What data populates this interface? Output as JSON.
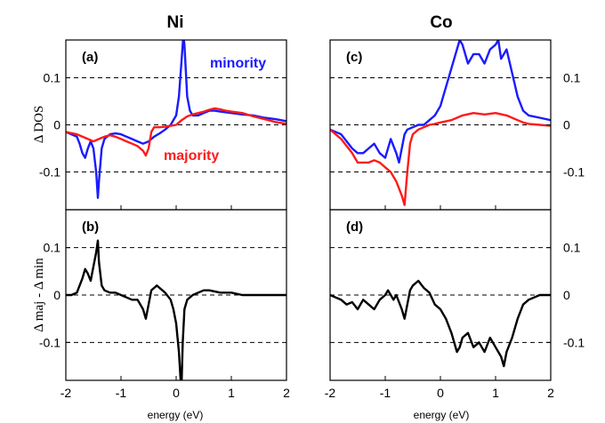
{
  "colors": {
    "minority": "#1a1aff",
    "majority": "#ff1a1a",
    "difference": "#000000"
  },
  "columns": {
    "left_title": "Ni",
    "right_title": "Co"
  },
  "ylabels": {
    "top": "Δ DOS",
    "bottom": "Δ maj - Δ min"
  },
  "xlabel": "energy (eV)",
  "xticks": [
    "-2",
    "-1",
    "0",
    "1",
    "2"
  ],
  "yticks": [
    "-0.1",
    "0",
    "0.1"
  ],
  "series_labels": {
    "minority": "minority",
    "majority": "majority"
  },
  "panel_labels": {
    "a": "(a)",
    "b": "(b)",
    "c": "(c)",
    "d": "(d)"
  },
  "chart_data": [
    {
      "panel": "(a)",
      "material": "Ni",
      "type": "line",
      "xlim": [
        -2,
        2
      ],
      "ylim": [
        -0.18,
        0.18
      ],
      "grid": "dashed lines at -0.1, 0, 0.1",
      "series": [
        {
          "name": "minority",
          "x": [
            -2,
            -1.9,
            -1.8,
            -1.75,
            -1.7,
            -1.65,
            -1.6,
            -1.55,
            -1.5,
            -1.45,
            -1.42,
            -1.4,
            -1.35,
            -1.3,
            -1.2,
            -1.1,
            -1.0,
            -0.9,
            -0.8,
            -0.7,
            -0.6,
            -0.5,
            -0.4,
            -0.3,
            -0.2,
            -0.1,
            0,
            0.05,
            0.1,
            0.13,
            0.15,
            0.2,
            0.25,
            0.3,
            0.4,
            0.5,
            0.6,
            0.7,
            0.8,
            1.0,
            1.2,
            1.4,
            1.6,
            1.8,
            2.0
          ],
          "y": [
            -0.015,
            -0.02,
            -0.025,
            -0.04,
            -0.06,
            -0.07,
            -0.05,
            -0.035,
            -0.05,
            -0.1,
            -0.155,
            -0.12,
            -0.05,
            -0.03,
            -0.02,
            -0.018,
            -0.02,
            -0.025,
            -0.03,
            -0.035,
            -0.04,
            -0.035,
            -0.025,
            -0.018,
            -0.01,
            0.0,
            0.02,
            0.06,
            0.14,
            0.19,
            0.17,
            0.06,
            0.03,
            0.02,
            0.02,
            0.025,
            0.03,
            0.03,
            0.028,
            0.025,
            0.022,
            0.02,
            0.015,
            0.012,
            0.008
          ]
        },
        {
          "name": "majority",
          "x": [
            -2,
            -1.8,
            -1.6,
            -1.5,
            -1.4,
            -1.3,
            -1.2,
            -1.1,
            -1.0,
            -0.9,
            -0.8,
            -0.7,
            -0.6,
            -0.55,
            -0.5,
            -0.45,
            -0.4,
            -0.3,
            -0.2,
            -0.1,
            0,
            0.1,
            0.2,
            0.3,
            0.4,
            0.5,
            0.6,
            0.7,
            0.8,
            0.9,
            1.0,
            1.2,
            1.4,
            1.6,
            1.8,
            2.0
          ],
          "y": [
            -0.015,
            -0.02,
            -0.03,
            -0.035,
            -0.03,
            -0.025,
            -0.022,
            -0.025,
            -0.03,
            -0.035,
            -0.04,
            -0.045,
            -0.055,
            -0.065,
            -0.05,
            -0.015,
            -0.005,
            -0.005,
            -0.004,
            -0.002,
            0.0,
            0.01,
            0.018,
            0.022,
            0.025,
            0.028,
            0.032,
            0.035,
            0.033,
            0.03,
            0.028,
            0.025,
            0.018,
            0.012,
            0.006,
            0.002
          ]
        }
      ]
    },
    {
      "panel": "(b)",
      "material": "Ni",
      "type": "line",
      "xlim": [
        -2,
        2
      ],
      "ylim": [
        -0.18,
        0.18
      ],
      "series": [
        {
          "name": "",
          "x": [
            -2,
            -1.9,
            -1.8,
            -1.75,
            -1.7,
            -1.65,
            -1.6,
            -1.55,
            -1.5,
            -1.45,
            -1.42,
            -1.4,
            -1.35,
            -1.3,
            -1.2,
            -1.1,
            -1.0,
            -0.9,
            -0.8,
            -0.7,
            -0.6,
            -0.55,
            -0.5,
            -0.45,
            -0.4,
            -0.35,
            -0.3,
            -0.2,
            -0.1,
            -0.05,
            0,
            0.05,
            0.08,
            0.1,
            0.12,
            0.15,
            0.2,
            0.3,
            0.4,
            0.5,
            0.6,
            0.8,
            1.0,
            1.2,
            1.4,
            1.6,
            1.8,
            2.0
          ],
          "y": [
            0.0,
            0.0,
            0.005,
            0.02,
            0.035,
            0.055,
            0.045,
            0.03,
            0.06,
            0.09,
            0.115,
            0.07,
            0.02,
            0.01,
            0.005,
            0.005,
            0.0,
            -0.005,
            -0.01,
            -0.01,
            -0.03,
            -0.05,
            -0.02,
            0.01,
            0.015,
            0.02,
            0.015,
            0.005,
            -0.01,
            -0.03,
            -0.06,
            -0.12,
            -0.18,
            -0.18,
            -0.1,
            -0.03,
            -0.01,
            0.0,
            0.005,
            0.01,
            0.01,
            0.005,
            0.005,
            0.0,
            0.0,
            0.0,
            0.0,
            0.0
          ]
        }
      ]
    },
    {
      "panel": "(c)",
      "material": "Co",
      "type": "line",
      "xlim": [
        -2,
        2
      ],
      "ylim": [
        -0.18,
        0.18
      ],
      "series": [
        {
          "name": "minority",
          "x": [
            -2,
            -1.8,
            -1.6,
            -1.5,
            -1.4,
            -1.3,
            -1.2,
            -1.1,
            -1.0,
            -0.9,
            -0.8,
            -0.75,
            -0.7,
            -0.65,
            -0.6,
            -0.5,
            -0.4,
            -0.3,
            -0.2,
            -0.1,
            0,
            0.1,
            0.2,
            0.3,
            0.35,
            0.4,
            0.5,
            0.6,
            0.7,
            0.8,
            0.9,
            1.0,
            1.05,
            1.1,
            1.2,
            1.3,
            1.4,
            1.5,
            1.6,
            1.8,
            2.0
          ],
          "y": [
            -0.01,
            -0.02,
            -0.05,
            -0.06,
            -0.06,
            -0.05,
            -0.04,
            -0.06,
            -0.07,
            -0.03,
            -0.06,
            -0.08,
            -0.05,
            -0.02,
            -0.01,
            -0.005,
            0.0,
            0.0,
            0.01,
            0.02,
            0.04,
            0.08,
            0.12,
            0.16,
            0.18,
            0.17,
            0.13,
            0.15,
            0.15,
            0.13,
            0.16,
            0.17,
            0.18,
            0.14,
            0.16,
            0.11,
            0.06,
            0.03,
            0.02,
            0.015,
            0.01
          ]
        },
        {
          "name": "majority",
          "x": [
            -2,
            -1.8,
            -1.6,
            -1.5,
            -1.4,
            -1.3,
            -1.2,
            -1.1,
            -1.0,
            -0.9,
            -0.8,
            -0.7,
            -0.65,
            -0.6,
            -0.55,
            -0.5,
            -0.4,
            -0.3,
            -0.2,
            -0.1,
            0,
            0.2,
            0.4,
            0.6,
            0.8,
            1.0,
            1.2,
            1.4,
            1.5,
            1.6,
            1.8,
            2.0
          ],
          "y": [
            -0.01,
            -0.03,
            -0.06,
            -0.08,
            -0.08,
            -0.08,
            -0.075,
            -0.08,
            -0.09,
            -0.1,
            -0.12,
            -0.15,
            -0.17,
            -0.1,
            -0.04,
            -0.02,
            -0.01,
            -0.005,
            0.0,
            0.002,
            0.005,
            0.01,
            0.02,
            0.025,
            0.022,
            0.025,
            0.02,
            0.01,
            0.005,
            0.002,
            0.0,
            -0.002
          ]
        }
      ]
    },
    {
      "panel": "(d)",
      "material": "Co",
      "type": "line",
      "xlim": [
        -2,
        2
      ],
      "ylim": [
        -0.18,
        0.18
      ],
      "series": [
        {
          "name": "",
          "x": [
            -2,
            -1.9,
            -1.8,
            -1.7,
            -1.6,
            -1.5,
            -1.4,
            -1.3,
            -1.2,
            -1.1,
            -1.0,
            -0.95,
            -0.9,
            -0.85,
            -0.8,
            -0.75,
            -0.7,
            -0.65,
            -0.6,
            -0.55,
            -0.5,
            -0.45,
            -0.4,
            -0.3,
            -0.2,
            -0.1,
            0,
            0.1,
            0.2,
            0.25,
            0.3,
            0.35,
            0.4,
            0.5,
            0.6,
            0.7,
            0.8,
            0.9,
            0.95,
            1.0,
            1.05,
            1.1,
            1.15,
            1.2,
            1.3,
            1.4,
            1.5,
            1.6,
            1.7,
            1.8,
            2.0
          ],
          "y": [
            0.0,
            -0.005,
            -0.01,
            -0.02,
            -0.015,
            -0.03,
            -0.01,
            -0.02,
            -0.03,
            -0.01,
            0.0,
            0.01,
            0.0,
            -0.01,
            0.0,
            -0.015,
            -0.03,
            -0.05,
            -0.02,
            0.01,
            0.02,
            0.025,
            0.03,
            0.015,
            0.005,
            -0.02,
            -0.03,
            -0.05,
            -0.08,
            -0.1,
            -0.12,
            -0.11,
            -0.09,
            -0.08,
            -0.11,
            -0.1,
            -0.12,
            -0.09,
            -0.1,
            -0.11,
            -0.12,
            -0.13,
            -0.15,
            -0.12,
            -0.09,
            -0.05,
            -0.02,
            -0.01,
            -0.005,
            0.0,
            0.0
          ]
        }
      ]
    }
  ]
}
